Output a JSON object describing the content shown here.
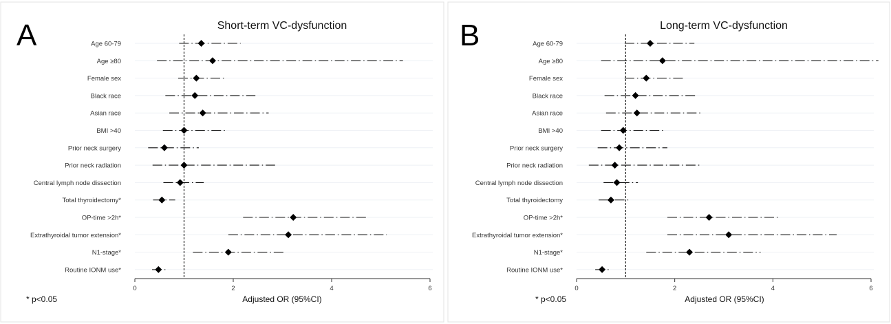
{
  "chart_data": [
    {
      "type": "forest",
      "panel_label": "A",
      "title": "Short-term VC-dysfunction",
      "xlabel": "Adjusted OR (95%CI)",
      "footnote": "* p<0.05",
      "xlim": [
        0,
        6
      ],
      "xticks": [
        0,
        2,
        4,
        6
      ],
      "reference_line": 1,
      "grid": "horizontal",
      "rows": [
        {
          "label": "Age 60-79",
          "or": 1.35,
          "lo": 0.9,
          "hi": 2.15
        },
        {
          "label": "Age ≥80",
          "or": 1.58,
          "lo": 0.45,
          "hi": 5.45
        },
        {
          "label": "Female sex",
          "or": 1.25,
          "lo": 0.88,
          "hi": 1.83
        },
        {
          "label": "Black race",
          "or": 1.22,
          "lo": 0.62,
          "hi": 2.45
        },
        {
          "label": "Asian race",
          "or": 1.38,
          "lo": 0.7,
          "hi": 2.72
        },
        {
          "label": "BMI >40",
          "or": 1.0,
          "lo": 0.57,
          "hi": 1.83
        },
        {
          "label": "Prior neck surgery",
          "or": 0.6,
          "lo": 0.27,
          "hi": 1.3
        },
        {
          "label": "Prior neck radiation",
          "or": 1.0,
          "lo": 0.36,
          "hi": 2.85
        },
        {
          "label": "Central lymph node dissection",
          "or": 0.92,
          "lo": 0.58,
          "hi": 1.4
        },
        {
          "label": "Total thyroidectomy*",
          "or": 0.55,
          "lo": 0.37,
          "hi": 0.82
        },
        {
          "label": "OP-time >2h*",
          "or": 3.22,
          "lo": 2.2,
          "hi": 4.72
        },
        {
          "label": "Extrathyroidal tumor extension*",
          "or": 3.12,
          "lo": 1.9,
          "hi": 5.12
        },
        {
          "label": "N1-stage*",
          "or": 1.9,
          "lo": 1.18,
          "hi": 3.02
        },
        {
          "label": "Routine IONM use*",
          "or": 0.48,
          "lo": 0.35,
          "hi": 0.62
        }
      ]
    },
    {
      "type": "forest",
      "panel_label": "B",
      "title": "Long-term VC-dysfunction",
      "xlabel": "Adjusted OR (95%CI)",
      "footnote": "* p<0.05",
      "xlim": [
        0,
        6
      ],
      "xticks": [
        0,
        2,
        4,
        6
      ],
      "reference_line": 1,
      "grid": "horizontal",
      "rows": [
        {
          "label": "Age 60-79",
          "or": 1.5,
          "lo": 0.98,
          "hi": 2.4
        },
        {
          "label": "Age ≥80",
          "or": 1.75,
          "lo": 0.5,
          "hi": 6.15
        },
        {
          "label": "Female sex",
          "or": 1.42,
          "lo": 0.98,
          "hi": 2.2
        },
        {
          "label": "Black race",
          "or": 1.2,
          "lo": 0.57,
          "hi": 2.47
        },
        {
          "label": "Asian race",
          "or": 1.23,
          "lo": 0.6,
          "hi": 2.52
        },
        {
          "label": "BMI >40",
          "or": 0.95,
          "lo": 0.5,
          "hi": 1.8
        },
        {
          "label": "Prior neck surgery",
          "or": 0.87,
          "lo": 0.43,
          "hi": 1.85
        },
        {
          "label": "Prior neck radiation",
          "or": 0.78,
          "lo": 0.25,
          "hi": 2.55
        },
        {
          "label": "Central lymph node dissection",
          "or": 0.82,
          "lo": 0.55,
          "hi": 1.25
        },
        {
          "label": "Total thyroidectomy",
          "or": 0.7,
          "lo": 0.45,
          "hi": 1.1
        },
        {
          "label": "OP-time >2h*",
          "or": 2.7,
          "lo": 1.85,
          "hi": 4.1
        },
        {
          "label": "Extrathyroidal tumor extension*",
          "or": 3.1,
          "lo": 1.85,
          "hi": 5.3
        },
        {
          "label": "N1-stage*",
          "or": 2.3,
          "lo": 1.42,
          "hi": 3.75
        },
        {
          "label": "Routine IONM use*",
          "or": 0.52,
          "lo": 0.38,
          "hi": 0.7
        }
      ]
    }
  ]
}
